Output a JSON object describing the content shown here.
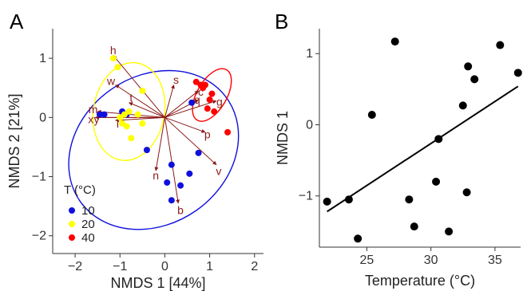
{
  "panels": {
    "a": "A",
    "b": "B"
  },
  "chart_data": [
    {
      "type": "scatter",
      "xlabel": "NMDS 1 [44%]",
      "ylabel": "NMDS 2 [21%]",
      "xlim": [
        -2.5,
        2.2
      ],
      "ylim": [
        -2.3,
        1.5
      ],
      "xticks": [
        -2,
        -1,
        0,
        1,
        2
      ],
      "yticks": [
        -2,
        -1,
        0,
        1
      ],
      "xtick_labels": [
        "−2",
        "−1",
        "0",
        "1",
        "2"
      ],
      "ytick_labels": [
        "−2",
        "−1",
        "0",
        "1"
      ],
      "legend": {
        "title": "T (°C)",
        "entries": [
          "10",
          "20",
          "40"
        ],
        "placement": "bottom-left"
      },
      "series": [
        {
          "name": "10",
          "color": "#1010dd",
          "points": [
            [
              -1.45,
              0.05
            ],
            [
              -1.35,
              0.05
            ],
            [
              -0.95,
              0.1
            ],
            [
              -0.85,
              0.05
            ],
            [
              -0.4,
              -0.55
            ],
            [
              0.05,
              -1.1
            ],
            [
              0.15,
              -1.4
            ],
            [
              0.15,
              -0.8
            ],
            [
              0.35,
              -1.15
            ],
            [
              0.55,
              -0.95
            ],
            [
              0.6,
              0.25
            ],
            [
              0.75,
              -0.6
            ]
          ]
        },
        {
          "name": "20",
          "color": "#ffff00",
          "points": [
            [
              -1.15,
              1.0
            ],
            [
              -1.05,
              0.85
            ],
            [
              -0.5,
              0.45
            ],
            [
              -1.0,
              0.0
            ],
            [
              -0.95,
              -0.1
            ],
            [
              -0.9,
              0.05
            ],
            [
              -0.85,
              -0.15
            ],
            [
              -0.8,
              0.1
            ],
            [
              -0.75,
              -0.35
            ],
            [
              -0.6,
              0.05
            ],
            [
              -0.5,
              -0.1
            ]
          ]
        },
        {
          "name": "40",
          "color": "#ff0000",
          "points": [
            [
              0.7,
              0.6
            ],
            [
              0.8,
              0.55
            ],
            [
              0.9,
              0.55
            ],
            [
              0.85,
              0.5
            ],
            [
              1.0,
              0.3
            ],
            [
              1.05,
              0.4
            ],
            [
              0.95,
              0.15
            ],
            [
              1.1,
              0.1
            ],
            [
              1.4,
              -0.25
            ]
          ]
        }
      ],
      "ellipses": [
        {
          "series": "10",
          "color": "#1010dd",
          "cx": -0.25,
          "cy": -0.55,
          "rx": 2.0,
          "ry": 1.25,
          "angle_deg": 35
        },
        {
          "series": "20",
          "color": "#ffff00",
          "cx": -0.8,
          "cy": 0.1,
          "rx": 1.1,
          "ry": 0.6,
          "angle_deg": 80
        },
        {
          "series": "40",
          "color": "#ff0000",
          "cx": 1.05,
          "cy": 0.38,
          "rx": 0.65,
          "ry": 0.25,
          "angle_deg": 60
        }
      ],
      "vectors": {
        "origin": [
          0,
          0
        ],
        "color": "#8b1a1a",
        "items": [
          {
            "label": "h",
            "x": -1.15,
            "y": 1.05,
            "lx": -1.15,
            "ly": 1.12
          },
          {
            "label": "w",
            "x": -1.1,
            "y": 0.55,
            "lx": -1.2,
            "ly": 0.6
          },
          {
            "label": "t",
            "x": -0.8,
            "y": 0.25,
            "lx": -0.75,
            "ly": 0.32
          },
          {
            "label": "m",
            "x": -1.5,
            "y": 0.1,
            "lx": -1.6,
            "ly": 0.12
          },
          {
            "label": "x",
            "x": -1.55,
            "y": 0.0,
            "lx": -1.65,
            "ly": -0.05
          },
          {
            "label": "y",
            "x": -1.55,
            "y": 0.0,
            "lx": -1.52,
            "ly": -0.05
          },
          {
            "label": "l",
            "x": -1.1,
            "y": -0.05,
            "lx": -1.05,
            "ly": -0.12
          },
          {
            "label": "s",
            "x": 0.2,
            "y": 0.55,
            "lx": 0.25,
            "ly": 0.62
          },
          {
            "label": "c",
            "x": 0.75,
            "y": 0.45,
            "lx": 0.8,
            "ly": 0.42
          },
          {
            "label": "q",
            "x": 0.75,
            "y": 0.3,
            "lx": 0.72,
            "ly": 0.28
          },
          {
            "label": "g",
            "x": 1.15,
            "y": 0.28,
            "lx": 1.22,
            "ly": 0.25
          },
          {
            "label": "p",
            "x": 0.9,
            "y": -0.25,
            "lx": 0.95,
            "ly": -0.3
          },
          {
            "label": "v",
            "x": 1.15,
            "y": -0.8,
            "lx": 1.2,
            "ly": -0.92
          },
          {
            "label": "n",
            "x": -0.2,
            "y": -0.9,
            "lx": -0.2,
            "ly": -1.0
          },
          {
            "label": "b",
            "x": 0.3,
            "y": -1.45,
            "lx": 0.35,
            "ly": -1.58
          }
        ]
      }
    },
    {
      "type": "scatter",
      "xlabel": "Temperature (°C)",
      "ylabel": "NMDS 1",
      "xlim": [
        21.3,
        37
      ],
      "ylim": [
        -1.72,
        1.35
      ],
      "xticks": [
        25,
        30,
        35
      ],
      "yticks": [
        -1,
        0,
        1
      ],
      "xtick_labels": [
        "25",
        "30",
        "35"
      ],
      "ytick_labels": [
        "−1",
        "0",
        "1"
      ],
      "points": [
        [
          21.9,
          -1.08
        ],
        [
          23.6,
          -1.05
        ],
        [
          24.3,
          -1.6
        ],
        [
          25.4,
          0.14
        ],
        [
          27.2,
          1.17
        ],
        [
          28.3,
          -1.05
        ],
        [
          28.7,
          -1.43
        ],
        [
          30.4,
          -0.8
        ],
        [
          30.6,
          -0.2
        ],
        [
          31.4,
          -1.5
        ],
        [
          32.5,
          0.27
        ],
        [
          32.8,
          -0.95
        ],
        [
          32.9,
          0.82
        ],
        [
          33.4,
          0.64
        ],
        [
          35.4,
          1.12
        ],
        [
          36.8,
          0.73
        ]
      ],
      "fit_line": [
        [
          21.9,
          -1.22
        ],
        [
          36.8,
          0.54
        ]
      ]
    }
  ]
}
